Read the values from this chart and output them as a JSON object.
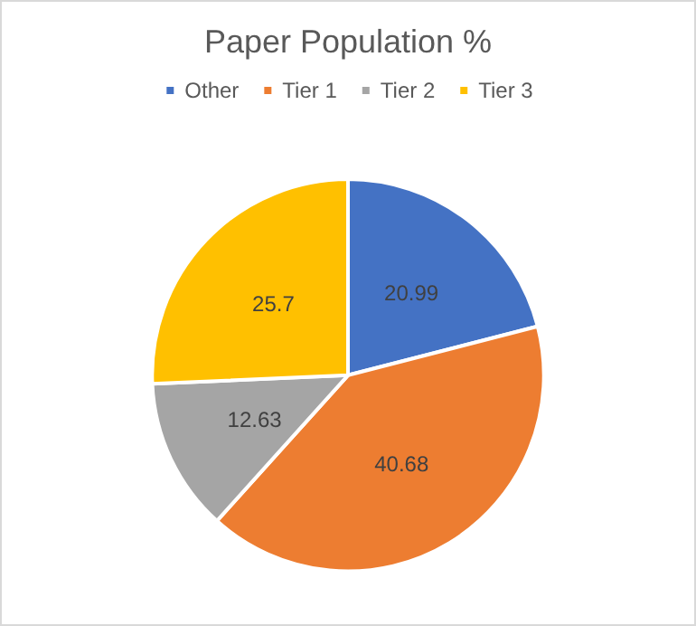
{
  "chart_data": {
    "type": "pie",
    "title": "Paper Population %",
    "categories": [
      "Other",
      "Tier 1",
      "Tier 2",
      "Tier 3"
    ],
    "values": [
      20.99,
      40.68,
      12.63,
      25.7
    ],
    "colors": [
      "#4472c4",
      "#ed7d31",
      "#a5a5a5",
      "#ffc000"
    ],
    "data_labels": true,
    "legend": "top"
  }
}
